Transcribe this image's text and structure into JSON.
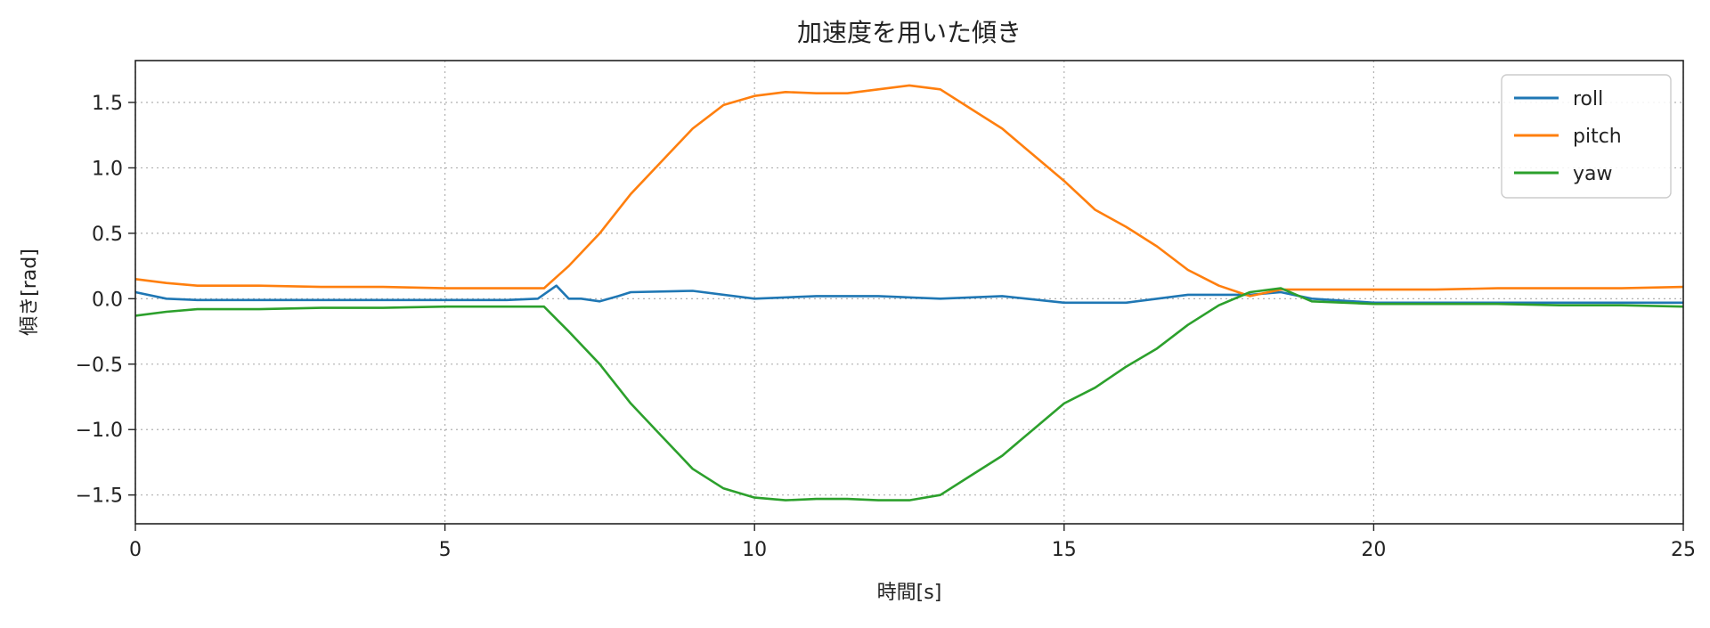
{
  "chart_data": {
    "type": "line",
    "title": "加速度を用いた傾き",
    "xlabel": "時間[s]",
    "ylabel": "傾き[rad]",
    "xlim": [
      0,
      25
    ],
    "ylim": [
      -1.72,
      1.82
    ],
    "xticks": [
      0,
      5,
      10,
      15,
      20,
      25
    ],
    "yticks": [
      -1.5,
      -1.0,
      -0.5,
      0.0,
      0.5,
      1.0,
      1.5
    ],
    "xtick_labels": [
      "0",
      "5",
      "10",
      "15",
      "20",
      "25"
    ],
    "ytick_labels": [
      "−1.5",
      "−1.0",
      "−0.5",
      "0.0",
      "0.5",
      "1.0",
      "1.5"
    ],
    "grid": true,
    "legend_position": "top-right",
    "series": [
      {
        "name": "roll",
        "color": "#1f77b4",
        "x": [
          0,
          0.5,
          1,
          2,
          3,
          4,
          5,
          6,
          6.5,
          6.8,
          7.0,
          7.2,
          7.5,
          7.8,
          8,
          9,
          10,
          11,
          12,
          13,
          14,
          15,
          16,
          17,
          18,
          18.5,
          19,
          20,
          21,
          22,
          23,
          24,
          25
        ],
        "y": [
          0.05,
          0.0,
          -0.01,
          -0.01,
          -0.01,
          -0.01,
          -0.01,
          -0.01,
          0.0,
          0.1,
          0.0,
          0.0,
          -0.02,
          0.02,
          0.05,
          0.06,
          0.0,
          0.02,
          0.02,
          0.0,
          0.02,
          -0.03,
          -0.03,
          0.03,
          0.03,
          0.05,
          0.0,
          -0.03,
          -0.03,
          -0.03,
          -0.03,
          -0.03,
          -0.03
        ]
      },
      {
        "name": "pitch",
        "color": "#ff7f0e",
        "x": [
          0,
          0.5,
          1,
          2,
          3,
          4,
          5,
          6,
          6.6,
          7.0,
          7.5,
          8.0,
          8.5,
          9.0,
          9.5,
          10.0,
          10.5,
          11.0,
          11.5,
          12.0,
          12.5,
          13.0,
          13.5,
          14.0,
          14.5,
          15.0,
          15.5,
          16.0,
          16.5,
          17.0,
          17.5,
          18.0,
          18.5,
          19,
          20,
          21,
          22,
          23,
          24,
          25
        ],
        "y": [
          0.15,
          0.12,
          0.1,
          0.1,
          0.09,
          0.09,
          0.08,
          0.08,
          0.08,
          0.25,
          0.5,
          0.8,
          1.05,
          1.3,
          1.48,
          1.55,
          1.58,
          1.57,
          1.57,
          1.6,
          1.63,
          1.6,
          1.45,
          1.3,
          1.1,
          0.9,
          0.68,
          0.55,
          0.4,
          0.22,
          0.1,
          0.02,
          0.07,
          0.07,
          0.07,
          0.07,
          0.08,
          0.08,
          0.08,
          0.09
        ]
      },
      {
        "name": "yaw",
        "color": "#2ca02c",
        "x": [
          0,
          0.5,
          1,
          2,
          3,
          4,
          5,
          6,
          6.6,
          7.0,
          7.5,
          8.0,
          8.5,
          9.0,
          9.5,
          10.0,
          10.5,
          11.0,
          11.5,
          12.0,
          12.5,
          13.0,
          13.5,
          14.0,
          14.5,
          15.0,
          15.5,
          16.0,
          16.5,
          17.0,
          17.5,
          18.0,
          18.5,
          19,
          20,
          21,
          22,
          23,
          24,
          25
        ],
        "y": [
          -0.13,
          -0.1,
          -0.08,
          -0.08,
          -0.07,
          -0.07,
          -0.06,
          -0.06,
          -0.06,
          -0.25,
          -0.5,
          -0.8,
          -1.05,
          -1.3,
          -1.45,
          -1.52,
          -1.54,
          -1.53,
          -1.53,
          -1.54,
          -1.54,
          -1.5,
          -1.35,
          -1.2,
          -1.0,
          -0.8,
          -0.68,
          -0.52,
          -0.38,
          -0.2,
          -0.05,
          0.05,
          0.08,
          -0.02,
          -0.04,
          -0.04,
          -0.04,
          -0.05,
          -0.05,
          -0.06
        ]
      }
    ]
  }
}
